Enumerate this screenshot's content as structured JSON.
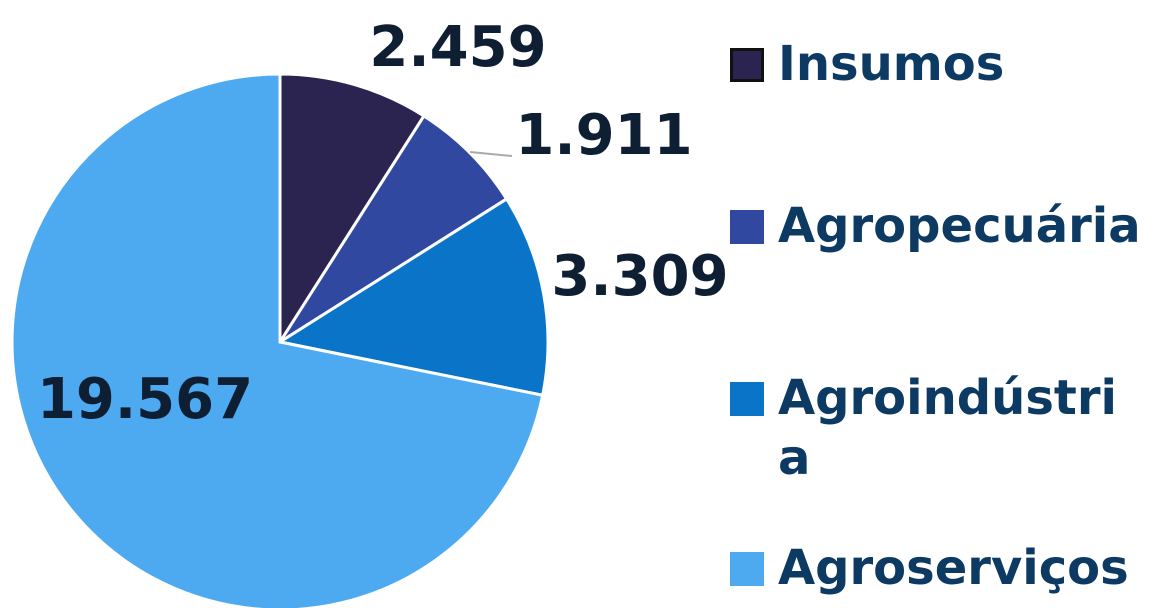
{
  "chart_data": {
    "type": "pie",
    "categories": [
      "Insumos",
      "Agropecuária",
      "Agroindústria",
      "Agroserviços"
    ],
    "values": [
      2459,
      1911,
      3309,
      19567
    ],
    "value_labels": [
      "2.459",
      "1.911",
      "3.309",
      "19.567"
    ],
    "colors": [
      "#2b2350",
      "#3048a0",
      "#0a75c8",
      "#4eaaf0"
    ],
    "legend": "right"
  }
}
